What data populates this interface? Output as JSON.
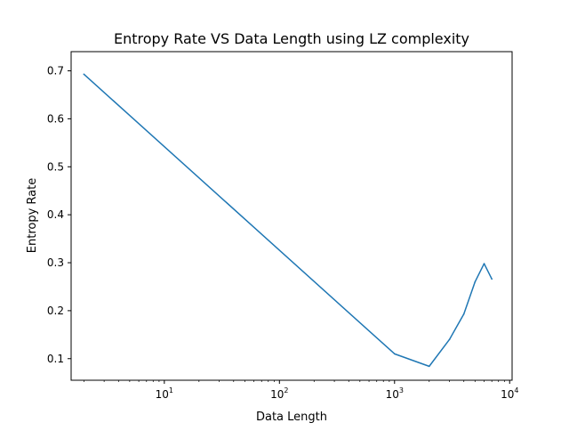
{
  "chart_data": {
    "type": "line",
    "title": "Entropy Rate VS Data Length using LZ complexity",
    "xlabel": "Data Length",
    "ylabel": "Entropy Rate",
    "xscale": "log",
    "xlim": [
      1.55,
      10500
    ],
    "ylim": [
      0.055,
      0.74
    ],
    "grid": false,
    "xticks": [
      {
        "value": 10,
        "base": "10",
        "exp": "1"
      },
      {
        "value": 100,
        "base": "10",
        "exp": "2"
      },
      {
        "value": 1000,
        "base": "10",
        "exp": "3"
      },
      {
        "value": 10000,
        "base": "10",
        "exp": "4"
      }
    ],
    "yticks": [
      {
        "value": 0.1,
        "label": "0.1"
      },
      {
        "value": 0.2,
        "label": "0.2"
      },
      {
        "value": 0.3,
        "label": "0.3"
      },
      {
        "value": 0.4,
        "label": "0.4"
      },
      {
        "value": 0.5,
        "label": "0.5"
      },
      {
        "value": 0.6,
        "label": "0.6"
      },
      {
        "value": 0.7,
        "label": "0.7"
      }
    ],
    "series": [
      {
        "color": "#1f77b4",
        "x": [
          2,
          1000,
          2000,
          3000,
          4000,
          5000,
          6000,
          7000
        ],
        "y": [
          0.693,
          0.11,
          0.084,
          0.14,
          0.193,
          0.26,
          0.298,
          0.266
        ]
      }
    ]
  }
}
